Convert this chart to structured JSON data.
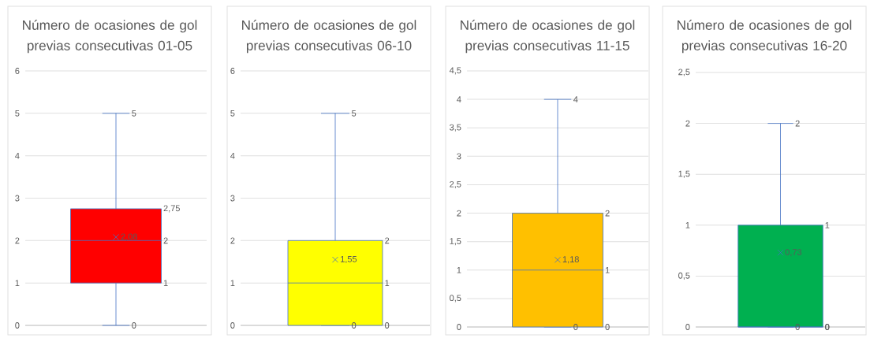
{
  "chart_data": [
    {
      "type": "box",
      "title": "Número de ocasiones de gol previas consecutivas 01-05",
      "categories": [
        null
      ],
      "series": [
        {
          "color": "#ff0000",
          "boxes": [
            {
              "low": 0,
              "q1": 1,
              "median": 2,
              "q3": 2.75,
              "high": 5,
              "mean": 2.08
            }
          ]
        }
      ],
      "ylim": [
        0,
        6
      ],
      "yticks": [
        0,
        1,
        2,
        3,
        4,
        5,
        6
      ],
      "grid": "y",
      "annotations": [
        "0",
        "1",
        "2",
        "2,75",
        "5",
        "2,08"
      ]
    },
    {
      "type": "box",
      "title": "Número de ocasiones de gol previas consecutivas 06-10",
      "categories": [
        null
      ],
      "series": [
        {
          "color": "#ffff00",
          "boxes": [
            {
              "low": 0,
              "q1": 0,
              "median": 1,
              "q3": 2,
              "high": 5,
              "mean": 1.55
            }
          ]
        }
      ],
      "ylim": [
        0,
        6
      ],
      "yticks": [
        0,
        1,
        2,
        3,
        4,
        5,
        6
      ],
      "grid": "y",
      "annotations": [
        "0",
        "0",
        "1",
        "2",
        "5",
        "1,55"
      ]
    },
    {
      "type": "box",
      "title": "Número de ocasiones de gol previas consecutivas 11-15",
      "categories": [
        null
      ],
      "series": [
        {
          "color": "#ffc000",
          "boxes": [
            {
              "low": 0,
              "q1": 0,
              "median": 1,
              "q3": 2,
              "high": 4,
              "mean": 1.18
            }
          ]
        }
      ],
      "ylim": [
        0,
        4.5
      ],
      "yticks": [
        0,
        {
          "value": 0.5,
          "label": "0,5"
        },
        1,
        {
          "value": 1.5,
          "label": "1,5"
        },
        2,
        {
          "value": 2.5,
          "label": "2,5"
        },
        3,
        {
          "value": 3.5,
          "label": "3,5"
        },
        4,
        {
          "value": 4.5,
          "label": "4,5"
        }
      ],
      "grid": "y",
      "annotations": [
        "0",
        "0",
        "1",
        "2",
        "4",
        "1,18"
      ]
    },
    {
      "type": "box",
      "title": "Número de ocasiones de gol previas consecutivas 16-20",
      "categories": [
        null
      ],
      "series": [
        {
          "color": "#00b050",
          "boxes": [
            {
              "low": 0,
              "q1": 0,
              "median": 0,
              "q3": 1,
              "high": 2,
              "mean": 0.73
            }
          ]
        }
      ],
      "ylim": [
        0,
        2.5
      ],
      "yticks": [
        0,
        {
          "value": 0.5,
          "label": "0,5"
        },
        1,
        {
          "value": 1.5,
          "label": "1,5"
        },
        2,
        {
          "value": 2.5,
          "label": "2,5"
        }
      ],
      "grid": "y",
      "annotations": [
        "0",
        "0",
        "0",
        "1",
        "2",
        "0,73"
      ]
    }
  ]
}
